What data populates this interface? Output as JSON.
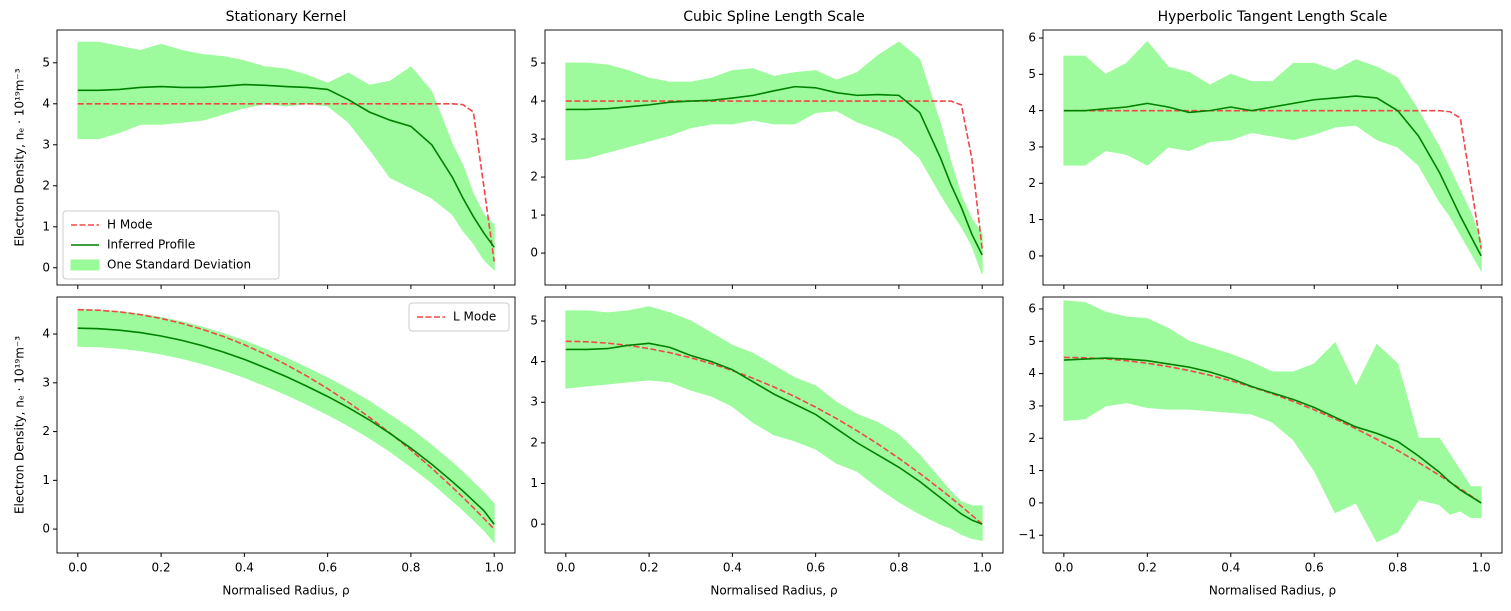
{
  "chart_data": [
    {
      "type": "line",
      "title": "Stationary Kernel",
      "ylabel": "Electron Density, nₑ · 10¹⁹m⁻³",
      "legend": "lower left",
      "xticklabels": false,
      "x": [
        0,
        0.05,
        0.1,
        0.15,
        0.2,
        0.25,
        0.3,
        0.35,
        0.4,
        0.45,
        0.5,
        0.55,
        0.6,
        0.65,
        0.7,
        0.75,
        0.8,
        0.85,
        0.9,
        0.925,
        0.95,
        0.975,
        1.0
      ],
      "xlim": [
        -0.05,
        1.05
      ],
      "xticks": [
        0,
        0.2,
        0.4,
        0.6,
        0.8,
        1
      ],
      "ylim": [
        -0.42,
        5.8
      ],
      "yticks": [
        0,
        1,
        2,
        3,
        4,
        5
      ],
      "series": [
        {
          "name": "H Mode",
          "color": "#f04848",
          "linestyle": "dashed",
          "values": [
            4,
            4,
            4,
            4,
            4,
            4,
            4,
            4,
            4,
            4,
            4,
            4,
            4,
            4,
            4,
            4,
            4,
            4,
            4,
            3.98,
            3.8,
            2.0,
            0.15
          ]
        },
        {
          "name": "Inferred Profile",
          "color": "#008000",
          "values": [
            4.33,
            4.33,
            4.35,
            4.4,
            4.42,
            4.4,
            4.4,
            4.43,
            4.47,
            4.45,
            4.42,
            4.4,
            4.35,
            4.1,
            3.8,
            3.6,
            3.45,
            3.0,
            2.2,
            1.7,
            1.25,
            0.85,
            0.5
          ]
        },
        {
          "name": "One Standard Deviation",
          "color": "#98fb98",
          "upper": [
            5.5,
            5.5,
            5.4,
            5.3,
            5.45,
            5.3,
            5.2,
            5.15,
            5.05,
            4.9,
            4.85,
            4.7,
            4.5,
            4.75,
            4.45,
            4.55,
            4.9,
            4.3,
            3.0,
            2.5,
            1.8,
            1.3,
            1.05
          ],
          "lower": [
            3.15,
            3.15,
            3.3,
            3.5,
            3.5,
            3.55,
            3.6,
            3.75,
            3.9,
            4.0,
            3.95,
            4.0,
            3.95,
            3.55,
            2.9,
            2.2,
            1.95,
            1.7,
            1.3,
            0.9,
            0.6,
            0.2,
            -0.05
          ]
        }
      ]
    },
    {
      "type": "line",
      "title": "Cubic Spline Length Scale",
      "xticklabels": false,
      "x": [
        0,
        0.05,
        0.1,
        0.15,
        0.2,
        0.25,
        0.3,
        0.35,
        0.4,
        0.45,
        0.5,
        0.55,
        0.6,
        0.65,
        0.7,
        0.75,
        0.8,
        0.85,
        0.9,
        0.925,
        0.95,
        0.975,
        1.0
      ],
      "xlim": [
        -0.05,
        1.05
      ],
      "xticks": [
        0,
        0.2,
        0.4,
        0.6,
        0.8,
        1
      ],
      "ylim": [
        -0.84,
        5.87
      ],
      "yticks": [
        0,
        1,
        2,
        3,
        4,
        5
      ],
      "series": [
        {
          "color": "#f04848",
          "linestyle": "dashed",
          "values": [
            4,
            4,
            4,
            4,
            4,
            4,
            4,
            4,
            4,
            4,
            4,
            4,
            4,
            4,
            4,
            4,
            4,
            4,
            4,
            4.0,
            3.9,
            2.5,
            0.1
          ]
        },
        {
          "color": "#008000",
          "values": [
            3.78,
            3.78,
            3.8,
            3.85,
            3.9,
            3.97,
            4.0,
            4.02,
            4.08,
            4.15,
            4.27,
            4.38,
            4.35,
            4.22,
            4.15,
            4.17,
            4.15,
            3.7,
            2.5,
            1.8,
            1.2,
            0.5,
            -0.05
          ]
        },
        {
          "color": "#98fb98",
          "upper": [
            5.0,
            5.0,
            4.95,
            4.8,
            4.6,
            4.5,
            4.5,
            4.6,
            4.8,
            4.85,
            4.65,
            4.75,
            4.8,
            4.55,
            4.75,
            5.2,
            5.55,
            5.1,
            3.4,
            2.4,
            1.5,
            0.9,
            0.5
          ],
          "lower": [
            2.45,
            2.5,
            2.65,
            2.8,
            2.95,
            3.1,
            3.3,
            3.4,
            3.4,
            3.5,
            3.4,
            3.4,
            3.7,
            3.75,
            3.45,
            3.25,
            3.0,
            2.5,
            1.55,
            1.1,
            0.7,
            0.2,
            -0.55
          ]
        }
      ]
    },
    {
      "type": "line",
      "title": "Hyperbolic Tangent Length Scale",
      "xticklabels": false,
      "x": [
        0,
        0.05,
        0.1,
        0.15,
        0.2,
        0.25,
        0.3,
        0.35,
        0.4,
        0.45,
        0.5,
        0.55,
        0.6,
        0.65,
        0.7,
        0.75,
        0.8,
        0.85,
        0.9,
        0.925,
        0.95,
        0.975,
        1.0
      ],
      "xlim": [
        -0.05,
        1.05
      ],
      "xticks": [
        0,
        0.2,
        0.4,
        0.6,
        0.8,
        1
      ],
      "ylim": [
        -0.8,
        6.22
      ],
      "yticks": [
        0,
        1,
        2,
        3,
        4,
        5,
        6
      ],
      "series": [
        {
          "color": "#f04848",
          "linestyle": "dashed",
          "values": [
            4,
            4,
            4,
            4,
            4,
            4,
            4,
            4,
            4,
            4,
            4,
            4,
            4,
            4,
            4,
            4,
            4,
            4,
            4,
            3.97,
            3.8,
            2.0,
            0.2
          ]
        },
        {
          "color": "#008000",
          "values": [
            4.0,
            4.0,
            4.05,
            4.1,
            4.2,
            4.1,
            3.95,
            4.0,
            4.1,
            4.0,
            4.1,
            4.2,
            4.3,
            4.35,
            4.4,
            4.35,
            4.0,
            3.3,
            2.3,
            1.7,
            1.1,
            0.55,
            0.0
          ]
        },
        {
          "color": "#98fb98",
          "upper": [
            5.5,
            5.5,
            5.0,
            5.3,
            5.9,
            5.2,
            5.05,
            4.7,
            5.0,
            4.8,
            4.8,
            5.3,
            5.3,
            5.1,
            5.4,
            5.2,
            4.9,
            4.0,
            3.0,
            2.4,
            1.8,
            1.2,
            0.4
          ],
          "lower": [
            2.5,
            2.5,
            2.9,
            2.8,
            2.5,
            3.0,
            2.9,
            3.15,
            3.2,
            3.4,
            3.3,
            3.2,
            3.35,
            3.55,
            3.6,
            3.2,
            3.0,
            2.5,
            1.5,
            1.1,
            0.6,
            0.1,
            -0.4
          ]
        }
      ]
    },
    {
      "type": "line",
      "xlabel": "Normalised Radius, ρ",
      "ylabel": "Electron Density, nₑ · 10¹⁹m⁻³",
      "legend": "upper right",
      "x": [
        0,
        0.05,
        0.1,
        0.15,
        0.2,
        0.25,
        0.3,
        0.35,
        0.4,
        0.45,
        0.5,
        0.55,
        0.6,
        0.65,
        0.7,
        0.75,
        0.8,
        0.85,
        0.9,
        0.925,
        0.95,
        0.975,
        1.0
      ],
      "xlim": [
        -0.05,
        1.05
      ],
      "xticks": [
        {
          "value": 0,
          "label": "0.0"
        },
        0.2,
        0.4,
        0.6,
        0.8,
        {
          "value": 1,
          "label": "1.0"
        }
      ],
      "ylim": [
        -0.49,
        4.76
      ],
      "yticks": [
        0,
        1,
        2,
        3,
        4
      ],
      "series": [
        {
          "name": "L Mode",
          "color": "#f04848",
          "linestyle": "dashed",
          "values": [
            4.5,
            4.489,
            4.455,
            4.399,
            4.32,
            4.219,
            4.095,
            3.949,
            3.78,
            3.589,
            3.375,
            3.139,
            2.88,
            2.599,
            2.295,
            1.969,
            1.62,
            1.249,
            0.855,
            0.649,
            0.439,
            0.222,
            0
          ]
        },
        {
          "color": "#008000",
          "values": [
            4.12,
            4.11,
            4.08,
            4.03,
            3.96,
            3.87,
            3.76,
            3.63,
            3.48,
            3.31,
            3.13,
            2.93,
            2.72,
            2.49,
            2.24,
            1.96,
            1.66,
            1.33,
            0.97,
            0.78,
            0.58,
            0.38,
            0.1
          ]
        },
        {
          "color": "#98fb98",
          "upper": [
            4.5,
            4.49,
            4.46,
            4.41,
            4.34,
            4.25,
            4.14,
            4.01,
            3.86,
            3.69,
            3.51,
            3.31,
            3.1,
            2.87,
            2.62,
            2.34,
            2.05,
            1.72,
            1.36,
            1.17,
            0.96,
            0.75,
            0.52
          ],
          "lower": [
            3.75,
            3.74,
            3.71,
            3.66,
            3.59,
            3.5,
            3.39,
            3.26,
            3.11,
            2.94,
            2.76,
            2.56,
            2.35,
            2.12,
            1.87,
            1.59,
            1.28,
            0.95,
            0.58,
            0.39,
            0.19,
            -0.02,
            -0.27
          ]
        }
      ]
    },
    {
      "type": "line",
      "xlabel": "Normalised Radius, ρ",
      "x": [
        0,
        0.05,
        0.1,
        0.15,
        0.2,
        0.25,
        0.3,
        0.35,
        0.4,
        0.45,
        0.5,
        0.55,
        0.6,
        0.65,
        0.7,
        0.75,
        0.8,
        0.85,
        0.9,
        0.925,
        0.95,
        0.975,
        1.0
      ],
      "xlim": [
        -0.05,
        1.05
      ],
      "xticks": [
        {
          "value": 0,
          "label": "0.0"
        },
        0.2,
        0.4,
        0.6,
        0.8,
        {
          "value": 1,
          "label": "1.0"
        }
      ],
      "ylim": [
        -0.71,
        5.59
      ],
      "yticks": [
        0,
        1,
        2,
        3,
        4,
        5
      ],
      "series": [
        {
          "color": "#f04848",
          "linestyle": "dashed",
          "values": [
            4.5,
            4.489,
            4.455,
            4.399,
            4.32,
            4.219,
            4.095,
            3.949,
            3.78,
            3.589,
            3.375,
            3.139,
            2.88,
            2.599,
            2.295,
            1.969,
            1.62,
            1.249,
            0.855,
            0.649,
            0.439,
            0.222,
            0
          ]
        },
        {
          "color": "#008000",
          "values": [
            4.3,
            4.3,
            4.32,
            4.4,
            4.45,
            4.35,
            4.15,
            4.0,
            3.8,
            3.5,
            3.2,
            2.95,
            2.7,
            2.35,
            2.0,
            1.7,
            1.4,
            1.05,
            0.65,
            0.45,
            0.25,
            0.1,
            0.0
          ]
        },
        {
          "color": "#98fb98",
          "upper": [
            5.25,
            5.25,
            5.2,
            5.25,
            5.35,
            5.2,
            5.0,
            4.7,
            4.4,
            4.2,
            3.9,
            3.6,
            3.4,
            3.0,
            2.7,
            2.5,
            2.2,
            1.7,
            1.1,
            0.8,
            0.55,
            0.45,
            0.45
          ],
          "lower": [
            3.35,
            3.4,
            3.45,
            3.5,
            3.55,
            3.5,
            3.3,
            3.15,
            2.9,
            2.5,
            2.2,
            2.05,
            1.85,
            1.5,
            1.3,
            0.9,
            0.55,
            0.25,
            0.0,
            -0.1,
            -0.25,
            -0.35,
            -0.4
          ]
        }
      ]
    },
    {
      "type": "line",
      "xlabel": "Normalised Radius, ρ",
      "x": [
        0,
        0.05,
        0.1,
        0.15,
        0.2,
        0.25,
        0.3,
        0.35,
        0.4,
        0.45,
        0.5,
        0.55,
        0.6,
        0.65,
        0.7,
        0.75,
        0.8,
        0.85,
        0.9,
        0.925,
        0.95,
        0.975,
        1.0
      ],
      "xlim": [
        -0.05,
        1.05
      ],
      "xticks": [
        {
          "value": 0,
          "label": "0.0"
        },
        0.2,
        0.4,
        0.6,
        0.8,
        {
          "value": 1,
          "label": "1.0"
        }
      ],
      "ylim": [
        -1.55,
        6.37
      ],
      "yticks": [
        {
          "value": -1,
          "label": "−1"
        },
        0,
        1,
        2,
        3,
        4,
        5,
        6
      ],
      "series": [
        {
          "color": "#f04848",
          "linestyle": "dashed",
          "values": [
            4.5,
            4.489,
            4.455,
            4.399,
            4.32,
            4.219,
            4.095,
            3.949,
            3.78,
            3.589,
            3.375,
            3.139,
            2.88,
            2.599,
            2.295,
            1.969,
            1.62,
            1.249,
            0.855,
            0.649,
            0.439,
            0.222,
            0
          ]
        },
        {
          "color": "#008000",
          "values": [
            4.42,
            4.45,
            4.48,
            4.45,
            4.4,
            4.3,
            4.2,
            4.05,
            3.85,
            3.6,
            3.4,
            3.2,
            2.95,
            2.65,
            2.35,
            2.15,
            1.9,
            1.45,
            0.95,
            0.65,
            0.4,
            0.2,
            0.0
          ]
        },
        {
          "color": "#98fb98",
          "upper": [
            6.25,
            6.2,
            5.9,
            5.75,
            5.7,
            5.4,
            5.0,
            4.8,
            4.6,
            4.35,
            4.05,
            4.05,
            4.3,
            4.95,
            3.6,
            4.9,
            4.3,
            2.0,
            2.0,
            1.5,
            1.0,
            0.5,
            0.5
          ],
          "lower": [
            2.55,
            2.6,
            3.0,
            3.1,
            2.95,
            2.9,
            2.9,
            2.85,
            2.8,
            2.75,
            2.5,
            1.95,
            1.0,
            -0.3,
            0.0,
            -1.2,
            -0.9,
            0.1,
            -0.05,
            -0.35,
            -0.25,
            -0.45,
            -0.45
          ]
        }
      ]
    }
  ]
}
